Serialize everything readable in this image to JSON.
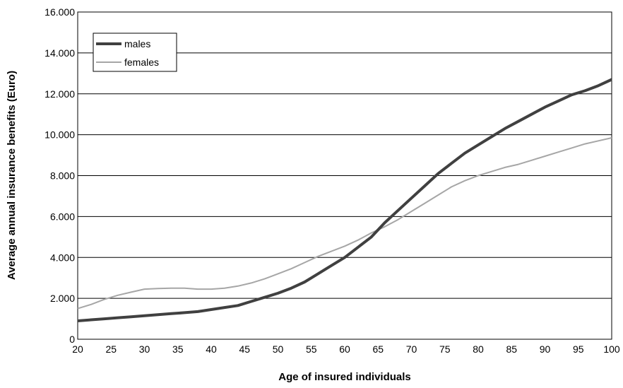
{
  "chart_data": {
    "type": "line",
    "title": "",
    "xlabel": "Age of insured individuals",
    "ylabel": "Average annual insurance benefits (Euro)",
    "xlim": [
      20,
      100
    ],
    "ylim": [
      0,
      16000
    ],
    "x_ticks": [
      "20",
      "25",
      "30",
      "35",
      "40",
      "45",
      "50",
      "55",
      "60",
      "65",
      "70",
      "75",
      "80",
      "85",
      "90",
      "95",
      "100"
    ],
    "y_ticks": [
      "0",
      "2.000",
      "4.000",
      "6.000",
      "8.000",
      "10.000",
      "12.000",
      "14.000",
      "16.000"
    ],
    "grid": "horizontal",
    "legend_position": "top-left",
    "x": [
      20,
      22,
      24,
      26,
      28,
      30,
      32,
      34,
      36,
      38,
      40,
      42,
      44,
      46,
      48,
      50,
      52,
      54,
      56,
      58,
      60,
      62,
      64,
      66,
      68,
      70,
      72,
      74,
      76,
      78,
      80,
      82,
      84,
      86,
      88,
      90,
      92,
      94,
      96,
      98,
      100
    ],
    "series": [
      {
        "name": "males",
        "color": "#404040",
        "values": [
          900,
          950,
          1000,
          1050,
          1100,
          1150,
          1200,
          1250,
          1300,
          1350,
          1450,
          1550,
          1650,
          1850,
          2050,
          2250,
          2500,
          2800,
          3200,
          3600,
          4000,
          4500,
          5000,
          5700,
          6300,
          6900,
          7500,
          8100,
          8600,
          9100,
          9500,
          9900,
          10300,
          10650,
          11000,
          11350,
          11650,
          11950,
          12150,
          12400,
          12700
        ]
      },
      {
        "name": "females",
        "color": "#a6a6a6",
        "values": [
          1500,
          1700,
          1950,
          2150,
          2300,
          2450,
          2480,
          2500,
          2500,
          2450,
          2450,
          2500,
          2600,
          2750,
          2950,
          3200,
          3450,
          3750,
          4050,
          4300,
          4550,
          4850,
          5200,
          5500,
          5850,
          6250,
          6650,
          7050,
          7450,
          7750,
          8000,
          8200,
          8400,
          8550,
          8750,
          8950,
          9150,
          9350,
          9550,
          9700,
          9850
        ]
      }
    ]
  }
}
